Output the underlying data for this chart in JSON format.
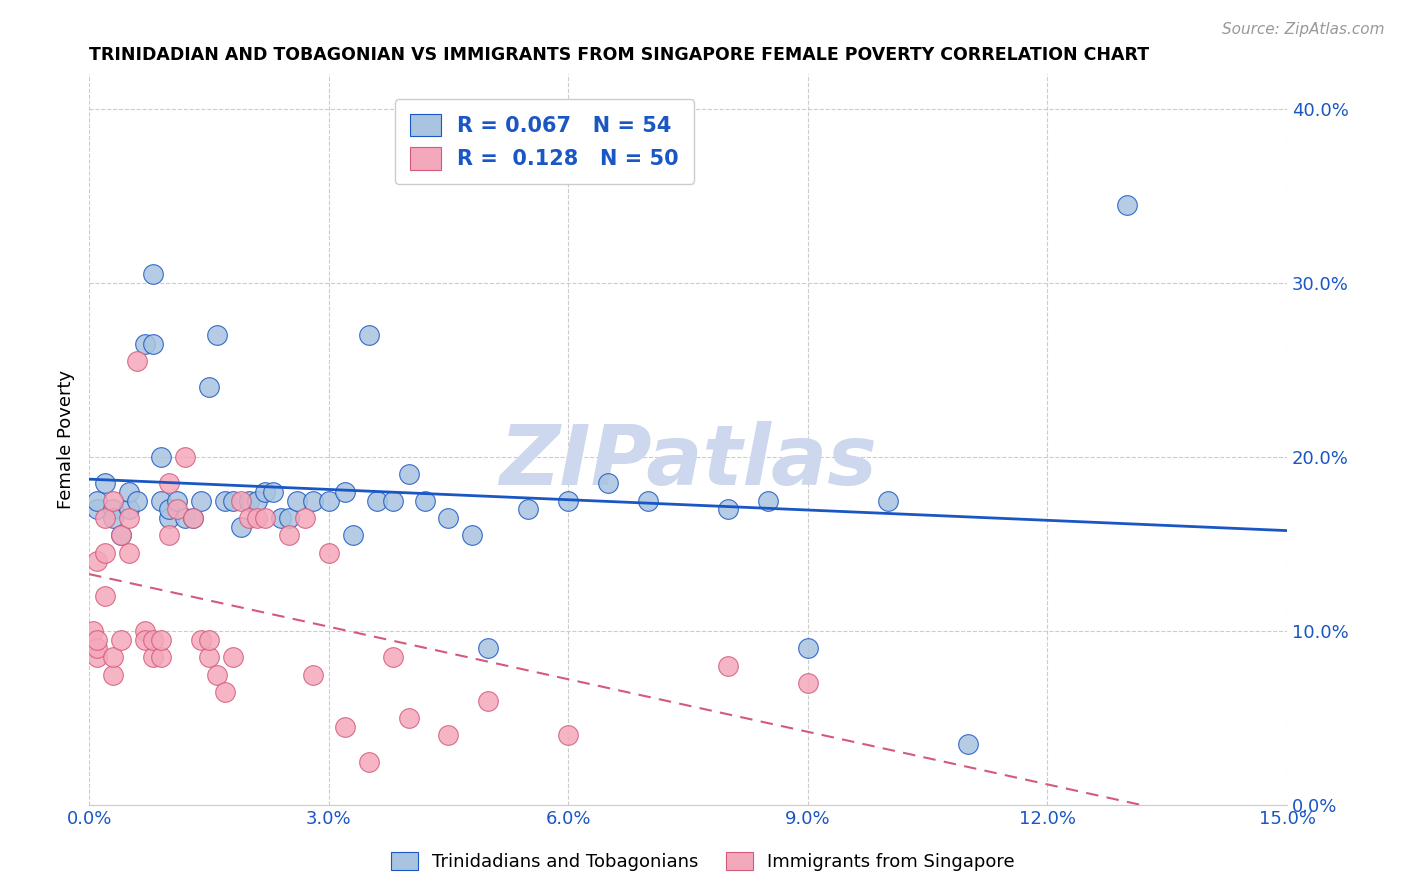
{
  "title": "TRINIDADIAN AND TOBAGONIAN VS IMMIGRANTS FROM SINGAPORE FEMALE POVERTY CORRELATION CHART",
  "source": "Source: ZipAtlas.com",
  "ylabel_label": "Female Poverty",
  "legend_label1": "Trinidadians and Tobagonians",
  "legend_label2": "Immigrants from Singapore",
  "R1": 0.067,
  "N1": 54,
  "R2": 0.128,
  "N2": 50,
  "color_blue": "#a8c4e0",
  "color_blue_line": "#1a56c4",
  "color_pink": "#f4a8bb",
  "color_pink_line": "#d45a7a",
  "color_text_blue": "#1a56c4",
  "scatter_blue_x": [
    0.001,
    0.001,
    0.002,
    0.003,
    0.003,
    0.004,
    0.005,
    0.005,
    0.006,
    0.007,
    0.008,
    0.008,
    0.009,
    0.009,
    0.01,
    0.01,
    0.011,
    0.012,
    0.013,
    0.014,
    0.015,
    0.016,
    0.017,
    0.018,
    0.019,
    0.02,
    0.021,
    0.022,
    0.023,
    0.024,
    0.025,
    0.026,
    0.028,
    0.03,
    0.032,
    0.033,
    0.035,
    0.036,
    0.038,
    0.04,
    0.042,
    0.045,
    0.048,
    0.05,
    0.055,
    0.06,
    0.065,
    0.07,
    0.08,
    0.085,
    0.09,
    0.1,
    0.11,
    0.13
  ],
  "scatter_blue_y": [
    0.17,
    0.175,
    0.185,
    0.17,
    0.165,
    0.155,
    0.17,
    0.18,
    0.175,
    0.265,
    0.265,
    0.305,
    0.175,
    0.2,
    0.165,
    0.17,
    0.175,
    0.165,
    0.165,
    0.175,
    0.24,
    0.27,
    0.175,
    0.175,
    0.16,
    0.175,
    0.175,
    0.18,
    0.18,
    0.165,
    0.165,
    0.175,
    0.175,
    0.175,
    0.18,
    0.155,
    0.27,
    0.175,
    0.175,
    0.19,
    0.175,
    0.165,
    0.155,
    0.09,
    0.17,
    0.175,
    0.185,
    0.175,
    0.17,
    0.175,
    0.09,
    0.175,
    0.035,
    0.345
  ],
  "scatter_pink_x": [
    0.0005,
    0.001,
    0.001,
    0.001,
    0.001,
    0.002,
    0.002,
    0.002,
    0.003,
    0.003,
    0.003,
    0.004,
    0.004,
    0.005,
    0.005,
    0.006,
    0.007,
    0.007,
    0.008,
    0.008,
    0.009,
    0.009,
    0.01,
    0.01,
    0.011,
    0.012,
    0.013,
    0.014,
    0.015,
    0.015,
    0.016,
    0.017,
    0.018,
    0.019,
    0.02,
    0.021,
    0.022,
    0.025,
    0.027,
    0.028,
    0.03,
    0.032,
    0.035,
    0.038,
    0.04,
    0.045,
    0.05,
    0.06,
    0.08,
    0.09
  ],
  "scatter_pink_y": [
    0.1,
    0.085,
    0.09,
    0.095,
    0.14,
    0.145,
    0.12,
    0.165,
    0.075,
    0.085,
    0.175,
    0.095,
    0.155,
    0.145,
    0.165,
    0.255,
    0.1,
    0.095,
    0.085,
    0.095,
    0.085,
    0.095,
    0.155,
    0.185,
    0.17,
    0.2,
    0.165,
    0.095,
    0.085,
    0.095,
    0.075,
    0.065,
    0.085,
    0.175,
    0.165,
    0.165,
    0.165,
    0.155,
    0.165,
    0.075,
    0.145,
    0.045,
    0.025,
    0.085,
    0.05,
    0.04,
    0.06,
    0.04,
    0.08,
    0.07
  ],
  "xlim": [
    0.0,
    0.15
  ],
  "ylim": [
    0.0,
    0.42
  ],
  "xticks": [
    0.0,
    0.03,
    0.06,
    0.09,
    0.12,
    0.15
  ],
  "yticks_right": [
    0.0,
    0.1,
    0.2,
    0.3,
    0.4
  ],
  "grid_color": "#cccccc",
  "background_color": "#ffffff",
  "watermark": "ZIPatlas",
  "watermark_color": "#cdd8ee"
}
